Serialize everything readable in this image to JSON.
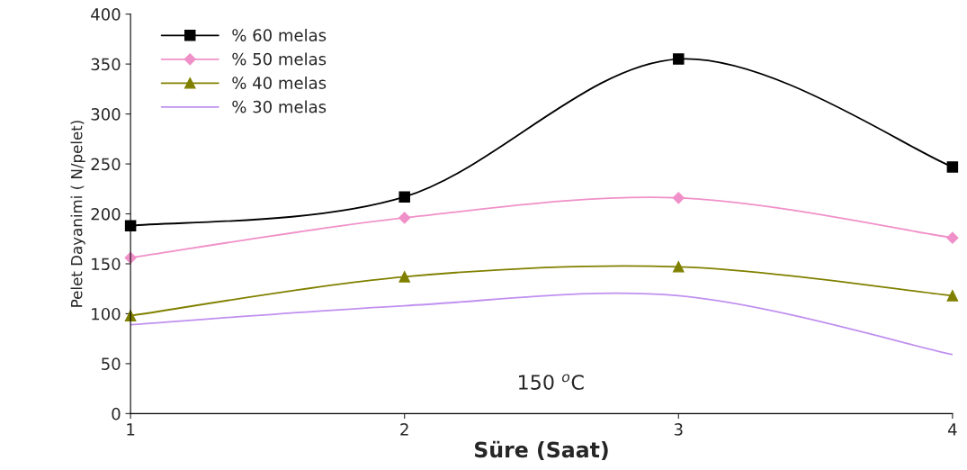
{
  "chart_data": {
    "type": "line",
    "x": [
      1,
      2,
      3,
      4
    ],
    "series": [
      {
        "name": "% 60 melas",
        "color": "#000000",
        "marker": "square",
        "values": [
          188,
          217,
          355,
          247
        ]
      },
      {
        "name": "% 50 melas",
        "color": "#f090c8",
        "marker": "diamond",
        "values": [
          156,
          196,
          216,
          176
        ]
      },
      {
        "name": "% 40 melas",
        "color": "#808000",
        "marker": "triangle",
        "values": [
          98,
          137,
          147,
          118
        ]
      },
      {
        "name": "% 30 melas",
        "color": "#c090f0",
        "marker": "none",
        "values": [
          89,
          108,
          118,
          59
        ]
      }
    ],
    "xlabel": "Süre (Saat)",
    "ylabel": "Pelet Dayanimi ( N/pelet)",
    "annotations": [
      "150 $^{o}$C"
    ],
    "xlim": [
      1,
      4
    ],
    "xticks": [
      1,
      2,
      3,
      4
    ],
    "ylim": [
      0,
      400
    ],
    "yticks": [
      0,
      50,
      100,
      150,
      200,
      250,
      300,
      350,
      400
    ],
    "grid": false,
    "legend": "top left",
    "line_style": "solid"
  }
}
